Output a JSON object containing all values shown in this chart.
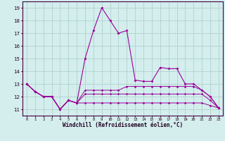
{
  "xlabel": "Windchill (Refroidissement éolien,°C)",
  "bg_color": "#d4eeee",
  "grid_color": "#aacccc",
  "line_color": "#990099",
  "x_ticks": [
    0,
    1,
    2,
    3,
    4,
    5,
    6,
    7,
    8,
    9,
    10,
    11,
    12,
    13,
    14,
    15,
    16,
    17,
    18,
    19,
    20,
    21,
    22,
    23
  ],
  "y_ticks": [
    11,
    12,
    13,
    14,
    15,
    16,
    17,
    18,
    19
  ],
  "xlim": [
    -0.5,
    23.5
  ],
  "ylim": [
    10.5,
    19.5
  ],
  "curve1": [
    13,
    12.4,
    12,
    12,
    11,
    11.7,
    11.5,
    15,
    17.2,
    19,
    18,
    17,
    17.2,
    13.3,
    13.2,
    13.2,
    14.3,
    14.2,
    14.2,
    13,
    13,
    12.5,
    12,
    11.1
  ],
  "curve2": [
    13,
    12.4,
    12,
    12,
    11,
    11.7,
    11.5,
    12.5,
    12.5,
    12.5,
    12.5,
    12.5,
    12.8,
    12.8,
    12.8,
    12.8,
    12.8,
    12.8,
    12.8,
    12.8,
    12.8,
    12.5,
    12,
    11.1
  ],
  "curve3": [
    13,
    12.4,
    12,
    12,
    11,
    11.7,
    11.5,
    12.2,
    12.2,
    12.2,
    12.2,
    12.2,
    12.2,
    12.2,
    12.2,
    12.2,
    12.2,
    12.2,
    12.2,
    12.2,
    12.2,
    12.2,
    11.7,
    11.1
  ],
  "curve4": [
    13,
    12.4,
    12,
    12,
    11,
    11.7,
    11.5,
    11.5,
    11.5,
    11.5,
    11.5,
    11.5,
    11.5,
    11.5,
    11.5,
    11.5,
    11.5,
    11.5,
    11.5,
    11.5,
    11.5,
    11.5,
    11.3,
    11.1
  ]
}
